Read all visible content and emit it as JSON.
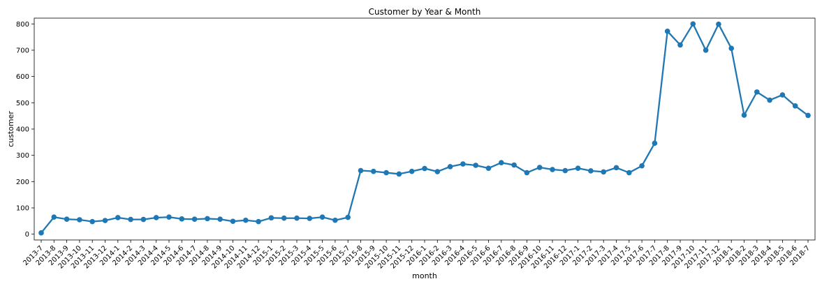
{
  "chart_data": {
    "type": "line",
    "title": "Customer by Year & Month",
    "xlabel": "month",
    "ylabel": "customer",
    "ylim": [
      -22,
      822
    ],
    "yticks": [
      0,
      100,
      200,
      300,
      400,
      500,
      600,
      700,
      800
    ],
    "grid": false,
    "legend": "none",
    "color": "#1f77b4",
    "categories": [
      "2013-7",
      "2013-8",
      "2013-9",
      "2013-10",
      "2013-11",
      "2013-12",
      "2014-1",
      "2014-2",
      "2014-3",
      "2014-4",
      "2014-5",
      "2014-6",
      "2014-7",
      "2014-8",
      "2014-9",
      "2014-10",
      "2014-11",
      "2014-12",
      "2015-1",
      "2015-2",
      "2015-3",
      "2015-4",
      "2015-5",
      "2015-6",
      "2015-7",
      "2015-8",
      "2015-9",
      "2015-10",
      "2015-11",
      "2015-12",
      "2016-1",
      "2016-2",
      "2016-3",
      "2016-4",
      "2016-5",
      "2016-6",
      "2016-7",
      "2016-8",
      "2016-9",
      "2016-10",
      "2016-11",
      "2016-12",
      "2017-1",
      "2017-2",
      "2017-3",
      "2017-4",
      "2017-5",
      "2017-6",
      "2017-7",
      "2017-8",
      "2017-9",
      "2017-10",
      "2017-11",
      "2017-12",
      "2018-1",
      "2018-2",
      "2018-3",
      "2018-4",
      "2018-5",
      "2018-6",
      "2018-7"
    ],
    "series": [
      {
        "values": [
          5,
          65,
          57,
          55,
          48,
          52,
          63,
          56,
          56,
          63,
          65,
          58,
          57,
          59,
          57,
          49,
          53,
          48,
          62,
          61,
          61,
          60,
          65,
          53,
          64,
          242,
          239,
          234,
          229,
          239,
          250,
          238,
          257,
          267,
          262,
          251,
          272,
          263,
          234,
          254,
          246,
          242,
          251,
          241,
          237,
          253,
          234,
          260,
          346,
          772,
          720,
          800,
          700,
          799,
          707,
          453,
          541,
          510,
          530,
          488,
          452
        ]
      }
    ]
  }
}
